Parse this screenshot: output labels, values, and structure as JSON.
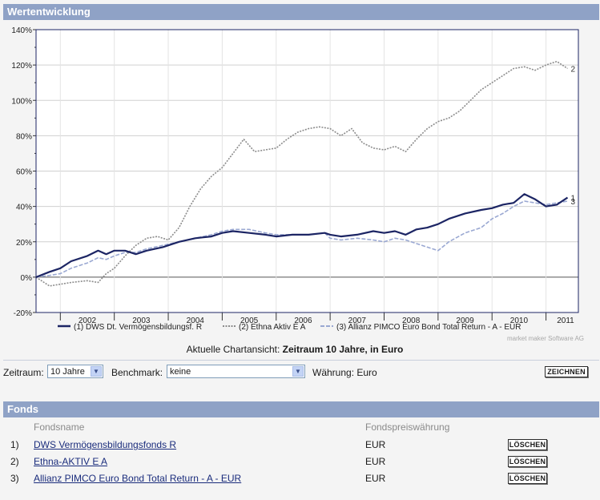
{
  "section_title": "Wertentwicklung",
  "chart_data": {
    "type": "line",
    "title": "",
    "xlabel": "",
    "ylabel": "",
    "ylim": [
      -20,
      140
    ],
    "yticks": [
      "-20%",
      "0%",
      "20%",
      "40%",
      "60%",
      "80%",
      "100%",
      "120%",
      "140%"
    ],
    "xticks": [
      "2002",
      "2003",
      "2004",
      "2005",
      "2006",
      "2007",
      "2008",
      "2009",
      "2010",
      "2011"
    ],
    "xlim": [
      2001.55,
      2011.6
    ],
    "grid": true,
    "series": [
      {
        "name": "(1)  DWS Dt. Vermögensbildungsf. R",
        "end_label": "1",
        "color": "#1c2564",
        "style": "solid",
        "x": [
          2001.55,
          2001.8,
          2002.0,
          2002.2,
          2002.5,
          2002.7,
          2002.85,
          2003.0,
          2003.2,
          2003.4,
          2003.6,
          2003.9,
          2004.2,
          2004.5,
          2004.8,
          2005.0,
          2005.2,
          2005.5,
          2005.8,
          2006.0,
          2006.3,
          2006.6,
          2006.9,
          2007.0,
          2007.2,
          2007.5,
          2007.8,
          2008.0,
          2008.2,
          2008.4,
          2008.6,
          2008.8,
          2009.0,
          2009.2,
          2009.5,
          2009.8,
          2010.0,
          2010.2,
          2010.4,
          2010.6,
          2010.8,
          2011.0,
          2011.2,
          2011.4
        ],
        "y": [
          0,
          3,
          5,
          9,
          12,
          15,
          13,
          15,
          15,
          13,
          15,
          17,
          20,
          22,
          23,
          25,
          26,
          25,
          24,
          23,
          24,
          24,
          25,
          24,
          23,
          24,
          26,
          25,
          26,
          24,
          27,
          28,
          30,
          33,
          36,
          38,
          39,
          41,
          42,
          47,
          44,
          40,
          41,
          45
        ]
      },
      {
        "name": "(2)  Ethna Aktiv E A",
        "end_label": "2",
        "color": "#8c8c8c",
        "style": "dotted",
        "x": [
          2001.55,
          2001.8,
          2002.0,
          2002.2,
          2002.5,
          2002.7,
          2002.85,
          2003.0,
          2003.2,
          2003.4,
          2003.6,
          2003.8,
          2004.0,
          2004.2,
          2004.4,
          2004.6,
          2004.8,
          2005.0,
          2005.2,
          2005.4,
          2005.6,
          2005.8,
          2006.0,
          2006.2,
          2006.4,
          2006.6,
          2006.8,
          2007.0,
          2007.2,
          2007.4,
          2007.6,
          2007.8,
          2008.0,
          2008.2,
          2008.4,
          2008.6,
          2008.8,
          2009.0,
          2009.2,
          2009.4,
          2009.6,
          2009.8,
          2010.0,
          2010.2,
          2010.4,
          2010.6,
          2010.8,
          2011.0,
          2011.2,
          2011.4
        ],
        "y": [
          0,
          -5,
          -4,
          -3,
          -2,
          -3,
          2,
          5,
          12,
          18,
          22,
          23,
          21,
          28,
          40,
          50,
          57,
          62,
          70,
          78,
          71,
          72,
          73,
          78,
          82,
          84,
          85,
          84,
          80,
          84,
          76,
          73,
          72,
          74,
          71,
          78,
          84,
          88,
          90,
          94,
          100,
          106,
          110,
          114,
          118,
          119,
          117,
          120,
          122,
          118
        ]
      },
      {
        "name": "(3)  Allianz PIMCO Euro Bond Total Return - A - EUR",
        "end_label": "3",
        "color": "#9aa8d2",
        "style": "dashed",
        "x": [
          2001.55,
          2001.8,
          2002.0,
          2002.2,
          2002.5,
          2002.7,
          2002.85,
          2003.0,
          2003.2,
          2003.4,
          2003.6,
          2003.9,
          2004.2,
          2004.5,
          2004.8,
          2005.0,
          2005.2,
          2005.5,
          2005.8,
          2006.0,
          2006.3,
          2006.6,
          2006.9,
          2007.0,
          2007.2,
          2007.5,
          2007.8,
          2008.0,
          2008.2,
          2008.4,
          2008.6,
          2008.8,
          2009.0,
          2009.2,
          2009.5,
          2009.8,
          2010.0,
          2010.2,
          2010.4,
          2010.6,
          2010.8,
          2011.0,
          2011.2,
          2011.4
        ],
        "y": [
          0,
          1,
          2,
          5,
          8,
          11,
          10,
          12,
          14,
          14,
          16,
          18,
          20,
          22,
          24,
          26,
          27,
          27,
          25,
          24,
          24,
          24,
          25,
          22,
          21,
          22,
          21,
          20,
          22,
          21,
          19,
          17,
          15,
          20,
          25,
          28,
          33,
          36,
          40,
          43,
          42,
          41,
          42,
          43
        ]
      }
    ]
  },
  "watermark": "market maker Software AG",
  "current_view": {
    "prefix": "Aktuelle Chartansicht:",
    "value": "Zeitraum 10 Jahre, in Euro"
  },
  "controls": {
    "zeitraum_label": "Zeitraum:",
    "zeitraum_value": "10 Jahre",
    "benchmark_label": "Benchmark:",
    "benchmark_value": "keine",
    "waehrung_label": "Währung: Euro",
    "draw_button": "ZEICHNEN"
  },
  "fonds": {
    "title": "Fonds",
    "col_name": "Fondsname",
    "col_currency": "Fondspreiswährung",
    "delete_label": "LÖSCHEN",
    "rows": [
      {
        "num": "1)",
        "name": "DWS Vermögensbildungsfonds R",
        "currency": "EUR"
      },
      {
        "num": "2)",
        "name": "Ethna-AKTIV E A",
        "currency": "EUR"
      },
      {
        "num": "3)",
        "name": "Allianz PIMCO Euro Bond Total Return - A - EUR",
        "currency": "EUR"
      }
    ]
  }
}
